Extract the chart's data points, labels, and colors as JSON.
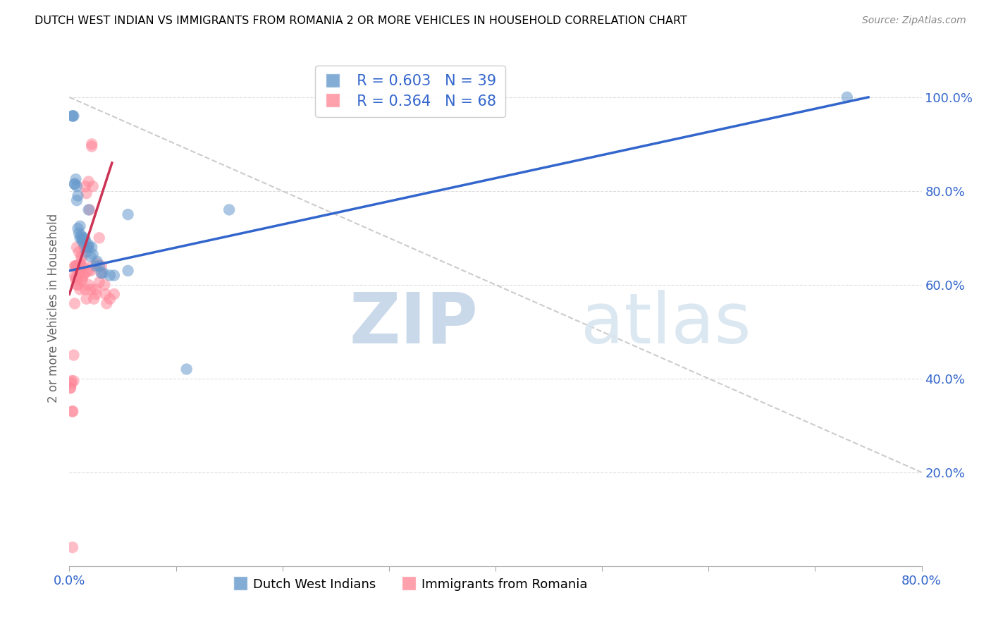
{
  "title": "DUTCH WEST INDIAN VS IMMIGRANTS FROM ROMANIA 2 OR MORE VEHICLES IN HOUSEHOLD CORRELATION CHART",
  "source": "Source: ZipAtlas.com",
  "ylabel": "2 or more Vehicles in Household",
  "xlim": [
    0.0,
    0.8
  ],
  "ylim": [
    0.0,
    1.1
  ],
  "xticks": [
    0.0,
    0.1,
    0.2,
    0.3,
    0.4,
    0.5,
    0.6,
    0.7,
    0.8
  ],
  "yticks": [
    0.0,
    0.2,
    0.4,
    0.6,
    0.8,
    1.0
  ],
  "legend_label_blue": "Dutch West Indians",
  "legend_label_pink": "Immigrants from Romania",
  "R_blue": 0.603,
  "N_blue": 39,
  "R_pink": 0.364,
  "N_pink": 68,
  "blue_color": "#6699CC",
  "pink_color": "#FF8899",
  "blue_line_color": "#3366CC",
  "pink_line_color": "#CC3355",
  "diagonal_color": "#CCCCCC",
  "blue_x": [
    0.003,
    0.003,
    0.004,
    0.005,
    0.005,
    0.006,
    0.007,
    0.007,
    0.008,
    0.008,
    0.009,
    0.01,
    0.01,
    0.011,
    0.012,
    0.012,
    0.013,
    0.014,
    0.015,
    0.016,
    0.016,
    0.018,
    0.018,
    0.02,
    0.021,
    0.022,
    0.025,
    0.026,
    0.028,
    0.03,
    0.032,
    0.038,
    0.042,
    0.055,
    0.055,
    0.11,
    0.15,
    0.73,
    0.018
  ],
  "blue_y": [
    0.96,
    0.96,
    0.96,
    0.815,
    0.815,
    0.825,
    0.81,
    0.78,
    0.79,
    0.72,
    0.71,
    0.725,
    0.7,
    0.705,
    0.695,
    0.7,
    0.69,
    0.7,
    0.695,
    0.68,
    0.67,
    0.68,
    0.685,
    0.66,
    0.68,
    0.665,
    0.64,
    0.65,
    0.64,
    0.625,
    0.625,
    0.62,
    0.62,
    0.63,
    0.75,
    0.42,
    0.76,
    1.0,
    0.76
  ],
  "pink_x": [
    0.001,
    0.001,
    0.002,
    0.002,
    0.003,
    0.003,
    0.004,
    0.004,
    0.005,
    0.005,
    0.005,
    0.006,
    0.006,
    0.006,
    0.006,
    0.007,
    0.007,
    0.007,
    0.008,
    0.008,
    0.008,
    0.009,
    0.009,
    0.009,
    0.01,
    0.01,
    0.01,
    0.01,
    0.011,
    0.011,
    0.011,
    0.012,
    0.012,
    0.012,
    0.013,
    0.013,
    0.014,
    0.014,
    0.015,
    0.015,
    0.015,
    0.016,
    0.016,
    0.017,
    0.018,
    0.018,
    0.018,
    0.019,
    0.02,
    0.02,
    0.021,
    0.021,
    0.022,
    0.022,
    0.023,
    0.025,
    0.025,
    0.026,
    0.028,
    0.028,
    0.03,
    0.03,
    0.033,
    0.034,
    0.035,
    0.038,
    0.042,
    0.003
  ],
  "pink_y": [
    0.38,
    0.38,
    0.395,
    0.39,
    0.33,
    0.33,
    0.395,
    0.45,
    0.64,
    0.62,
    0.56,
    0.64,
    0.64,
    0.615,
    0.61,
    0.68,
    0.6,
    0.64,
    0.615,
    0.625,
    0.6,
    0.67,
    0.63,
    0.64,
    0.63,
    0.59,
    0.645,
    0.63,
    0.64,
    0.66,
    0.64,
    0.615,
    0.61,
    0.66,
    0.64,
    0.62,
    0.68,
    0.68,
    0.625,
    0.59,
    0.81,
    0.795,
    0.57,
    0.68,
    0.6,
    0.63,
    0.82,
    0.76,
    0.63,
    0.59,
    0.895,
    0.9,
    0.81,
    0.64,
    0.57,
    0.59,
    0.58,
    0.645,
    0.605,
    0.7,
    0.625,
    0.64,
    0.6,
    0.58,
    0.56,
    0.57,
    0.58,
    0.04
  ],
  "blue_line_x0": 0.0,
  "blue_line_y0": 0.63,
  "blue_line_x1": 0.75,
  "blue_line_y1": 1.0,
  "pink_line_x0": 0.0,
  "pink_line_y0": 0.58,
  "pink_line_x1": 0.04,
  "pink_line_y1": 0.86
}
